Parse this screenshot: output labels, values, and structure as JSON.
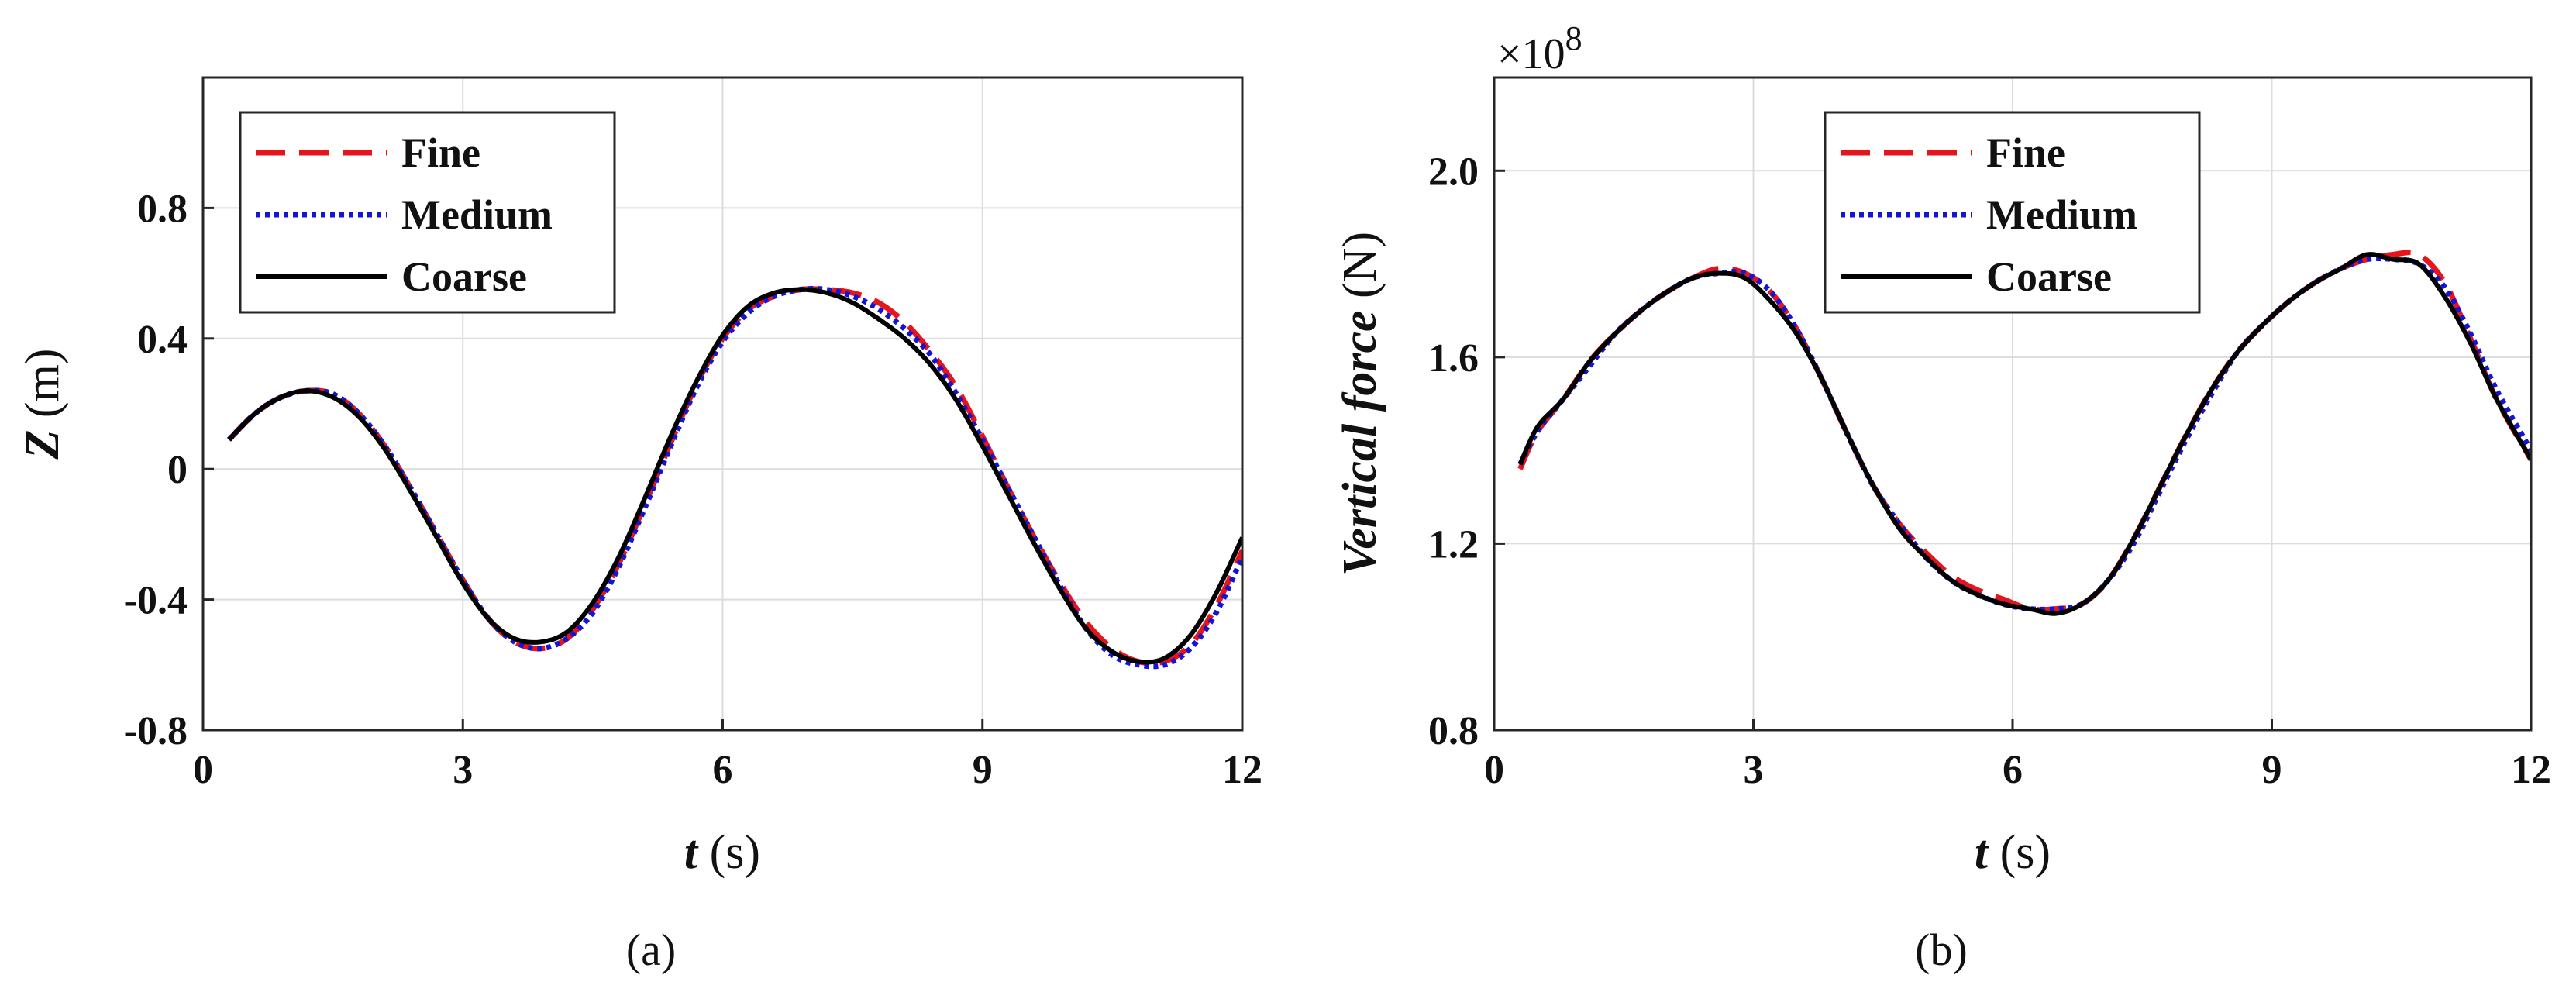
{
  "figure": {
    "panels": [
      "(a)",
      "(b)"
    ]
  },
  "chart_data": [
    {
      "type": "line",
      "panel_label": "(a)",
      "xlabel": "t (s)",
      "xlabel_var": "t",
      "xlabel_unit": " (s)",
      "ylabel": "Z (m)",
      "ylabel_var": "Z",
      "ylabel_unit": " (m)",
      "xlim": [
        0,
        12
      ],
      "ylim": [
        -0.8,
        1.2
      ],
      "xticks": [
        0,
        3,
        6,
        9,
        12
      ],
      "xtick_labels": [
        "0",
        "3",
        "6",
        "9",
        "12"
      ],
      "yticks": [
        -0.8,
        -0.4,
        0,
        0.4,
        0.8
      ],
      "ytick_labels": [
        "-0.8",
        "-0.4",
        "0",
        "0.4",
        "0.8"
      ],
      "grid": true,
      "legend_position": "top-left",
      "series": [
        {
          "name": "Fine",
          "color": "#e8141c",
          "style": "dashed",
          "x": [
            0.3,
            0.6,
            0.9,
            1.2,
            1.5,
            1.8,
            2.1,
            2.4,
            2.7,
            3.0,
            3.3,
            3.6,
            3.9,
            4.2,
            4.5,
            4.8,
            5.1,
            5.4,
            5.7,
            6.0,
            6.3,
            6.6,
            6.9,
            7.2,
            7.5,
            7.8,
            8.1,
            8.4,
            8.7,
            9.0,
            9.3,
            9.6,
            9.9,
            10.2,
            10.5,
            10.8,
            11.1,
            11.4,
            11.7,
            12.0
          ],
          "y": [
            0.09,
            0.17,
            0.22,
            0.24,
            0.23,
            0.17,
            0.07,
            -0.06,
            -0.2,
            -0.34,
            -0.46,
            -0.53,
            -0.55,
            -0.52,
            -0.43,
            -0.29,
            -0.11,
            0.08,
            0.26,
            0.4,
            0.49,
            0.53,
            0.55,
            0.55,
            0.54,
            0.51,
            0.45,
            0.36,
            0.25,
            0.1,
            -0.06,
            -0.21,
            -0.35,
            -0.47,
            -0.55,
            -0.59,
            -0.59,
            -0.54,
            -0.42,
            -0.25
          ]
        },
        {
          "name": "Medium",
          "color": "#1414d2",
          "style": "dotted",
          "x": [
            0.3,
            0.6,
            0.9,
            1.2,
            1.5,
            1.8,
            2.1,
            2.4,
            2.7,
            3.0,
            3.3,
            3.6,
            3.9,
            4.2,
            4.5,
            4.8,
            5.1,
            5.4,
            5.7,
            6.0,
            6.3,
            6.6,
            6.9,
            7.2,
            7.5,
            7.8,
            8.1,
            8.4,
            8.7,
            9.0,
            9.3,
            9.6,
            9.9,
            10.2,
            10.5,
            10.8,
            11.1,
            11.4,
            11.7,
            12.0
          ],
          "y": [
            0.09,
            0.17,
            0.22,
            0.24,
            0.23,
            0.17,
            0.07,
            -0.06,
            -0.2,
            -0.34,
            -0.46,
            -0.53,
            -0.55,
            -0.52,
            -0.44,
            -0.3,
            -0.12,
            0.07,
            0.25,
            0.39,
            0.48,
            0.53,
            0.55,
            0.55,
            0.53,
            0.49,
            0.43,
            0.35,
            0.23,
            0.09,
            -0.06,
            -0.21,
            -0.36,
            -0.49,
            -0.57,
            -0.6,
            -0.6,
            -0.55,
            -0.44,
            -0.27
          ]
        },
        {
          "name": "Coarse",
          "color": "#000000",
          "style": "solid",
          "x": [
            0.3,
            0.6,
            0.9,
            1.2,
            1.5,
            1.8,
            2.1,
            2.4,
            2.7,
            3.0,
            3.3,
            3.6,
            3.9,
            4.2,
            4.5,
            4.8,
            5.1,
            5.4,
            5.7,
            6.0,
            6.3,
            6.6,
            6.9,
            7.2,
            7.5,
            7.8,
            8.1,
            8.4,
            8.7,
            9.0,
            9.3,
            9.6,
            9.9,
            10.2,
            10.5,
            10.8,
            11.1,
            11.4,
            11.7,
            12.0
          ],
          "y": [
            0.09,
            0.17,
            0.22,
            0.24,
            0.22,
            0.16,
            0.06,
            -0.07,
            -0.21,
            -0.35,
            -0.46,
            -0.52,
            -0.53,
            -0.5,
            -0.41,
            -0.27,
            -0.09,
            0.1,
            0.27,
            0.41,
            0.5,
            0.54,
            0.55,
            0.54,
            0.51,
            0.46,
            0.4,
            0.32,
            0.21,
            0.07,
            -0.08,
            -0.23,
            -0.37,
            -0.49,
            -0.56,
            -0.59,
            -0.58,
            -0.51,
            -0.38,
            -0.21
          ]
        }
      ]
    },
    {
      "type": "line",
      "panel_label": "(b)",
      "xlabel": "t (s)",
      "xlabel_var": "t",
      "xlabel_unit": " (s)",
      "ylabel": "Vertical force (N)",
      "ylabel_var": "Vertical force",
      "ylabel_unit": " (N)",
      "y_exponent": "×10",
      "y_exponent_power": "8",
      "xlim": [
        0,
        12
      ],
      "ylim": [
        0.8,
        2.2
      ],
      "xticks": [
        0,
        3,
        6,
        9,
        12
      ],
      "xtick_labels": [
        "0",
        "3",
        "6",
        "9",
        "12"
      ],
      "yticks": [
        0.8,
        1.2,
        1.6,
        2.0
      ],
      "ytick_labels": [
        "0.8",
        "1.2",
        "1.6",
        "2.0"
      ],
      "grid": true,
      "legend_position": "top-center",
      "series": [
        {
          "name": "Fine",
          "color": "#e8141c",
          "style": "dashed",
          "x": [
            0.3,
            0.5,
            0.8,
            1.1,
            1.4,
            1.7,
            2.0,
            2.3,
            2.6,
            2.9,
            3.2,
            3.5,
            3.8,
            4.1,
            4.4,
            4.7,
            5.0,
            5.3,
            5.6,
            5.9,
            6.2,
            6.5,
            6.8,
            7.1,
            7.4,
            7.7,
            8.0,
            8.3,
            8.6,
            8.9,
            9.2,
            9.5,
            9.8,
            10.1,
            10.4,
            10.7,
            11.0,
            11.3,
            11.6,
            12.0
          ],
          "y": [
            1.36,
            1.44,
            1.51,
            1.59,
            1.65,
            1.7,
            1.74,
            1.77,
            1.79,
            1.78,
            1.74,
            1.66,
            1.55,
            1.43,
            1.32,
            1.24,
            1.18,
            1.13,
            1.1,
            1.08,
            1.06,
            1.06,
            1.07,
            1.12,
            1.21,
            1.32,
            1.43,
            1.53,
            1.61,
            1.67,
            1.72,
            1.76,
            1.79,
            1.81,
            1.82,
            1.82,
            1.76,
            1.64,
            1.51,
            1.38
          ]
        },
        {
          "name": "Medium",
          "color": "#1414d2",
          "style": "dotted",
          "x": [
            0.3,
            0.5,
            0.8,
            1.1,
            1.4,
            1.7,
            2.0,
            2.3,
            2.6,
            2.9,
            3.2,
            3.5,
            3.8,
            4.1,
            4.4,
            4.7,
            5.0,
            5.3,
            5.6,
            5.9,
            6.2,
            6.5,
            6.8,
            7.1,
            7.4,
            7.7,
            8.0,
            8.3,
            8.6,
            8.9,
            9.2,
            9.5,
            9.8,
            10.1,
            10.4,
            10.7,
            11.0,
            11.3,
            11.6,
            12.0
          ],
          "y": [
            1.37,
            1.44,
            1.51,
            1.58,
            1.65,
            1.7,
            1.74,
            1.77,
            1.78,
            1.78,
            1.74,
            1.66,
            1.55,
            1.43,
            1.32,
            1.24,
            1.17,
            1.12,
            1.09,
            1.07,
            1.06,
            1.06,
            1.07,
            1.12,
            1.2,
            1.31,
            1.42,
            1.52,
            1.61,
            1.67,
            1.72,
            1.76,
            1.79,
            1.81,
            1.81,
            1.8,
            1.75,
            1.65,
            1.53,
            1.4
          ]
        },
        {
          "name": "Coarse",
          "color": "#000000",
          "style": "solid",
          "x": [
            0.3,
            0.5,
            0.8,
            1.1,
            1.4,
            1.7,
            2.0,
            2.3,
            2.6,
            2.9,
            3.2,
            3.5,
            3.8,
            4.1,
            4.4,
            4.7,
            5.0,
            5.3,
            5.6,
            5.9,
            6.2,
            6.5,
            6.8,
            7.1,
            7.4,
            7.7,
            8.0,
            8.3,
            8.6,
            8.9,
            9.2,
            9.5,
            9.8,
            10.1,
            10.4,
            10.7,
            11.0,
            11.3,
            11.6,
            12.0
          ],
          "y": [
            1.37,
            1.45,
            1.51,
            1.59,
            1.65,
            1.7,
            1.74,
            1.77,
            1.78,
            1.77,
            1.72,
            1.65,
            1.55,
            1.43,
            1.32,
            1.23,
            1.17,
            1.12,
            1.09,
            1.07,
            1.06,
            1.05,
            1.07,
            1.12,
            1.21,
            1.32,
            1.43,
            1.53,
            1.61,
            1.67,
            1.72,
            1.76,
            1.79,
            1.82,
            1.81,
            1.8,
            1.73,
            1.63,
            1.51,
            1.38
          ]
        }
      ]
    }
  ]
}
